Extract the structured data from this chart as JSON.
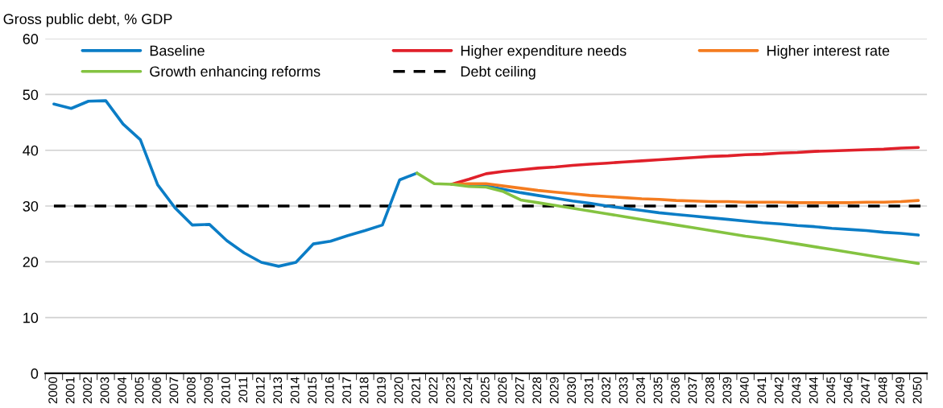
{
  "chart_data": {
    "type": "line",
    "ylabel": "Gross public debt, % GDP",
    "categories": [
      "2000",
      "2001",
      "2002",
      "2003",
      "2004",
      "2005",
      "2006",
      "2007",
      "2008",
      "2009",
      "2010",
      "2011",
      "2012",
      "2013",
      "2014",
      "2015",
      "2016",
      "2017",
      "2018",
      "2019",
      "2020",
      "2021",
      "2022",
      "2023",
      "2024",
      "2025",
      "2026",
      "2027",
      "2028",
      "2029",
      "2030",
      "2031",
      "2032",
      "2033",
      "2034",
      "2035",
      "2036",
      "2037",
      "2038",
      "2039",
      "2040",
      "2041",
      "2042",
      "2043",
      "2044",
      "2045",
      "2046",
      "2047",
      "2048",
      "2049",
      "2050"
    ],
    "series": [
      {
        "name": "Baseline",
        "color": "#0b7dc6",
        "values": [
          48.3,
          47.5,
          48.8,
          48.9,
          44.7,
          41.9,
          33.8,
          29.7,
          26.6,
          26.7,
          23.8,
          21.6,
          19.9,
          19.2,
          19.9,
          23.2,
          23.7,
          24.7,
          25.6,
          26.6,
          34.7,
          35.9,
          null,
          null,
          33.7,
          33.6,
          33.0,
          32.4,
          31.9,
          31.4,
          30.9,
          30.5,
          30.0,
          29.6,
          29.2,
          28.8,
          28.5,
          28.2,
          27.9,
          27.6,
          27.3,
          27.0,
          26.8,
          26.5,
          26.3,
          26.0,
          25.8,
          25.6,
          25.3,
          25.1,
          24.8
        ]
      },
      {
        "name": "Higher expenditure needs",
        "color": "#e0202a",
        "values": [
          null,
          null,
          null,
          null,
          null,
          null,
          null,
          null,
          null,
          null,
          null,
          null,
          null,
          null,
          null,
          null,
          null,
          null,
          null,
          null,
          null,
          null,
          null,
          33.9,
          34.8,
          35.8,
          36.2,
          36.5,
          36.8,
          37.0,
          37.3,
          37.5,
          37.7,
          37.9,
          38.1,
          38.3,
          38.5,
          38.7,
          38.9,
          39.0,
          39.2,
          39.3,
          39.5,
          39.6,
          39.8,
          39.9,
          40.0,
          40.1,
          40.2,
          40.4,
          40.5
        ]
      },
      {
        "name": "Higher interest rate",
        "color": "#f47c20",
        "values": [
          null,
          null,
          null,
          null,
          null,
          null,
          null,
          null,
          null,
          null,
          null,
          null,
          null,
          null,
          null,
          null,
          null,
          null,
          null,
          null,
          null,
          null,
          null,
          33.9,
          34.0,
          34.0,
          33.6,
          33.2,
          32.8,
          32.5,
          32.2,
          31.9,
          31.7,
          31.5,
          31.3,
          31.2,
          31.0,
          30.9,
          30.8,
          30.8,
          30.7,
          30.7,
          30.7,
          30.6,
          30.6,
          30.6,
          30.6,
          30.7,
          30.7,
          30.8,
          31.0
        ]
      },
      {
        "name": "Growth enhancing reforms",
        "color": "#84c341",
        "values": [
          null,
          null,
          null,
          null,
          null,
          null,
          null,
          null,
          null,
          null,
          null,
          null,
          null,
          null,
          null,
          null,
          null,
          null,
          null,
          null,
          null,
          35.9,
          34.0,
          33.9,
          33.5,
          33.4,
          32.6,
          31.1,
          30.6,
          30.1,
          29.6,
          29.1,
          28.6,
          28.1,
          27.6,
          27.1,
          26.6,
          26.1,
          25.6,
          25.1,
          24.6,
          24.2,
          23.7,
          23.2,
          22.7,
          22.2,
          21.7,
          21.2,
          20.7,
          20.2,
          19.7
        ]
      }
    ],
    "ref_lines": [
      {
        "axis": "y",
        "value": 30,
        "label": "Debt ceiling",
        "color": "#000000",
        "line_style": "dashed"
      }
    ],
    "ylim": [
      0,
      60
    ],
    "yticks": [
      0,
      10,
      20,
      30,
      40,
      50,
      60
    ],
    "grid": "y",
    "legend": "top",
    "line_style": "solid",
    "marker": "none"
  }
}
